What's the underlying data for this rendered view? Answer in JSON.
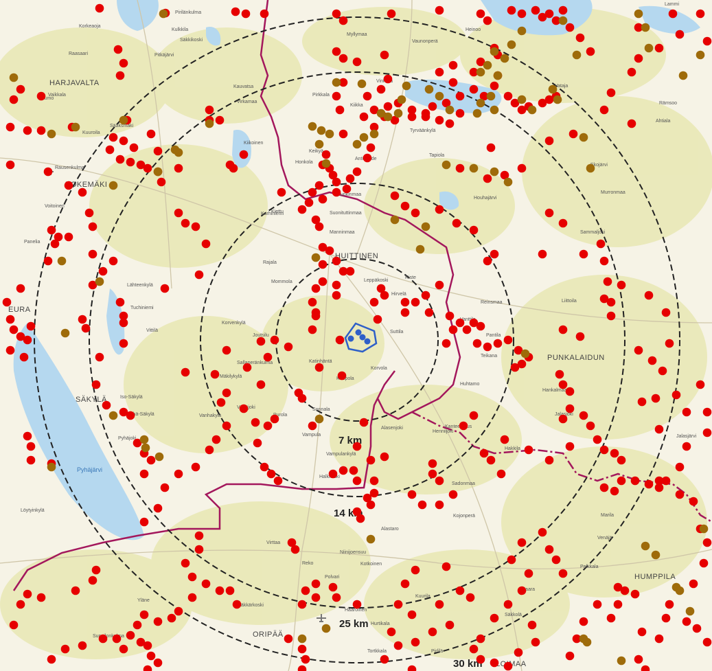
{
  "map": {
    "colors": {
      "land": "#f6f3e6",
      "forest": "#e8e7b4",
      "water": "#b5d8ef",
      "ring": "#222222",
      "municipal_border": "#a3175c",
      "red_marker": "#e60000",
      "brown_marker": "#9e6b0a",
      "project_marker": "#2e5fc8"
    },
    "ring_labels": [
      "7 km",
      "14 km",
      "25 km",
      "30 km"
    ],
    "major_places": [
      "HARJAVALTA",
      "KOKEMÄKI",
      "HUITTINEN",
      "PUNKALAIDUN",
      "SÄKYLÄ",
      "EURA",
      "ORIPÄÄ",
      "HUMPPILA",
      "LOIMAA"
    ],
    "lake_labels": [
      "Pyhäjärvi"
    ],
    "places": [
      "Pirilänkulma",
      "Kulkkila",
      "Korkeaoja",
      "Säkkikoski",
      "Pitkäjärvi",
      "Myllymaa",
      "Vaunonperä",
      "Heinoo",
      "Lammi",
      "Raasaari",
      "Kumo",
      "Pirkkala",
      "Kiikka",
      "Vinkkilä",
      "Vataja",
      "Rämsoo",
      "Ahtiala",
      "Vaikkala",
      "Kauvatsa",
      "Virkamaa",
      "Kuuroila",
      "Sääksmäki",
      "Honkola",
      "Kiikoinen",
      "Keikyä",
      "Antinahde",
      "Tyrväänkylä",
      "Tapiola",
      "Ekojärvi",
      "Rausenkulma",
      "Munkinmaa",
      "Houhajärvi",
      "Murronmaa",
      "Sammaljoki",
      "Kiettu",
      "Manninmaa",
      "Suonituttinmaa",
      "Karhiniemi",
      "Voitoinen",
      "Panelia",
      "Rajala",
      "Mommola",
      "Lähteenkylä",
      "Leppäkoski",
      "Riste",
      "Hirvelä",
      "Reinsmaa",
      "Liittoila",
      "Tuchiniemi",
      "Vittilä",
      "Korvenkylä",
      "Joutsilu",
      "Vanttila",
      "Pantila",
      "Teikana",
      "Suttila",
      "Sallaperänkulma",
      "Katinhäntä",
      "Kuupola",
      "Korvola",
      "Huhtamo",
      "Iso-Säkylä",
      "Vähä-Säkylä",
      "Pyhäjoki",
      "Mäkilykylä",
      "Vanhakylä",
      "Vähäjoki",
      "Purola",
      "Vampula",
      "Sonnala",
      "Alasenjoki",
      "Henniijoki",
      "Kanteentaus",
      "Hankalmaa",
      "Jalasjoki",
      "Hakkila",
      "Vampulankylä",
      "Halkkoski",
      "Sadonmaa",
      "Kojonperä",
      "Löytyinkylä",
      "Jalasjärvi",
      "Alastaro",
      "Virttaa",
      "Niinijoensuu",
      "Kotkoinen",
      "Reko",
      "Polvari",
      "Yläne",
      "Suppilonkulma",
      "Mäkkärkoski",
      "Haaroinen",
      "Kuurila",
      "Hurtikala",
      "Tortkkala",
      "Pirlilä",
      "Haara",
      "Säkkolä",
      "Venäjä",
      "Marila",
      "Pelkkala"
    ],
    "legend_count_red": "many",
    "airport_icon": "airplane-icon"
  }
}
